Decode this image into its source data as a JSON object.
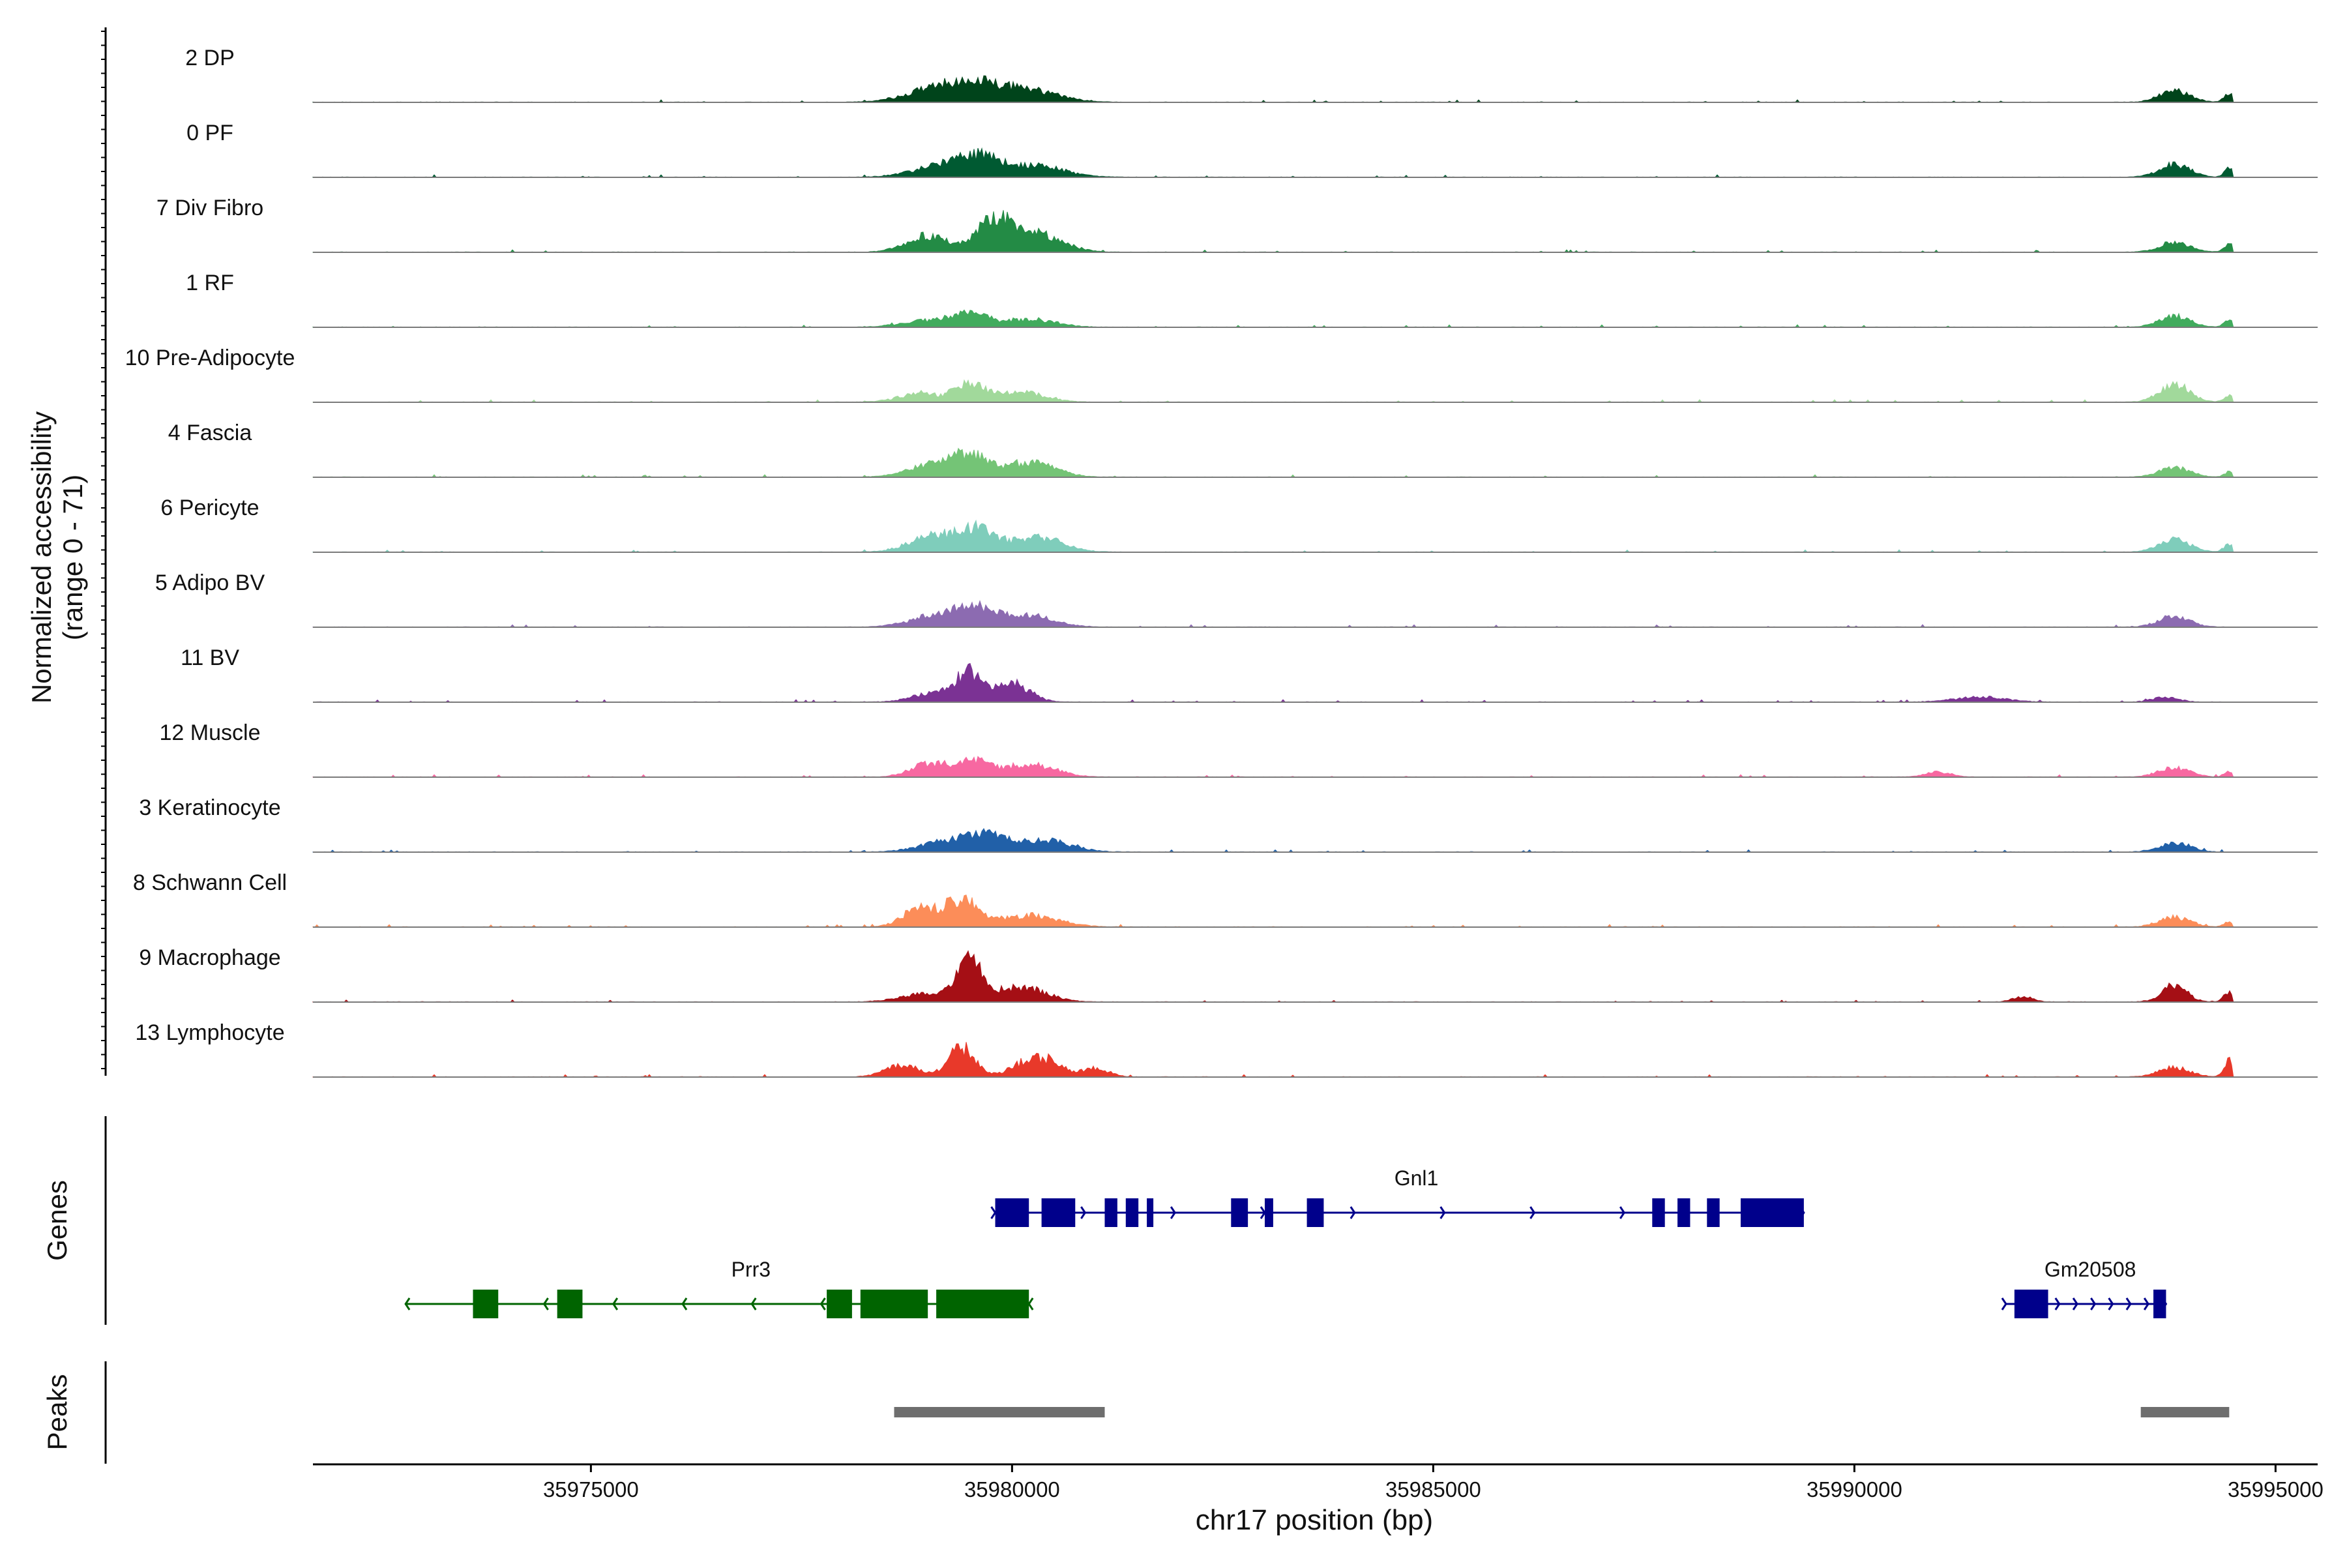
{
  "chart_data": {
    "type": "area",
    "title": "",
    "chromosome": "chr17",
    "xlabel": "chr17 position (bp)",
    "xlim": [
      35971700,
      35995500
    ],
    "track_max": 35994500,
    "ylabel_line1": "Normalized accessibility",
    "ylabel_line2": "(range 0 - 71)",
    "ylim": [
      0,
      71
    ],
    "x_ticks": [
      {
        "value": 35975000,
        "label": "35975000"
      },
      {
        "value": 35980000,
        "label": "35980000"
      },
      {
        "value": 35985000,
        "label": "35985000"
      },
      {
        "value": 35990000,
        "label": "35990000"
      },
      {
        "value": 35995000,
        "label": "35995000"
      }
    ],
    "tracks": [
      {
        "name": "2 DP",
        "color": "#00441b",
        "peaks": [
          [
            35979100,
            16,
            350
          ],
          [
            35979600,
            18,
            300
          ],
          [
            35980200,
            14,
            350
          ],
          [
            35993800,
            14,
            180
          ],
          [
            35994450,
            10,
            60
          ]
        ]
      },
      {
        "name": "0 PF",
        "color": "#005a32",
        "peaks": [
          [
            35979200,
            14,
            350
          ],
          [
            35979600,
            18,
            250
          ],
          [
            35980250,
            14,
            350
          ],
          [
            35993800,
            16,
            180
          ],
          [
            35994450,
            10,
            60
          ]
        ]
      },
      {
        "name": "7 Div Fibro",
        "color": "#238b45",
        "peaks": [
          [
            35979000,
            20,
            250
          ],
          [
            35979800,
            40,
            200
          ],
          [
            35980300,
            22,
            300
          ],
          [
            35993800,
            12,
            180
          ],
          [
            35994450,
            10,
            60
          ]
        ]
      },
      {
        "name": "1 RF",
        "color": "#41ab5d",
        "peaks": [
          [
            35979000,
            8,
            300
          ],
          [
            35979500,
            16,
            200
          ],
          [
            35980200,
            10,
            300
          ],
          [
            35993800,
            14,
            180
          ],
          [
            35994450,
            8,
            60
          ]
        ]
      },
      {
        "name": "10 Pre-Adipocyte",
        "color": "#a1d99b",
        "peaks": [
          [
            35978900,
            10,
            250
          ],
          [
            35979500,
            22,
            180
          ],
          [
            35980100,
            12,
            280
          ],
          [
            35993800,
            20,
            180
          ],
          [
            35994450,
            8,
            60
          ]
        ]
      },
      {
        "name": "4 Fascia",
        "color": "#74c476",
        "peaks": [
          [
            35979100,
            16,
            300
          ],
          [
            35979500,
            22,
            200
          ],
          [
            35980200,
            18,
            300
          ],
          [
            35993800,
            12,
            180
          ],
          [
            35994450,
            6,
            60
          ]
        ]
      },
      {
        "name": "6 Pericyte",
        "color": "#7fcdbb",
        "peaks": [
          [
            35979100,
            20,
            300
          ],
          [
            35979600,
            26,
            200
          ],
          [
            35980300,
            18,
            300
          ],
          [
            35993800,
            16,
            180
          ],
          [
            35994450,
            10,
            60
          ]
        ]
      },
      {
        "name": "5 Adipo BV",
        "color": "#8c6bb1",
        "peaks": [
          [
            35979100,
            14,
            300
          ],
          [
            35979600,
            20,
            250
          ],
          [
            35980200,
            14,
            300
          ],
          [
            35993800,
            14,
            180
          ]
        ]
      },
      {
        "name": "11 BV",
        "color": "#7b3294",
        "peaks": [
          [
            35979100,
            12,
            250
          ],
          [
            35979500,
            34,
            150
          ],
          [
            35980000,
            24,
            200
          ],
          [
            35991500,
            6,
            300
          ],
          [
            35993700,
            6,
            150
          ]
        ]
      },
      {
        "name": "12 Muscle",
        "color": "#f768a1",
        "peaks": [
          [
            35979000,
            16,
            200
          ],
          [
            35979500,
            20,
            200
          ],
          [
            35980200,
            16,
            300
          ],
          [
            35991000,
            6,
            150
          ],
          [
            35993800,
            12,
            180
          ],
          [
            35994450,
            6,
            60
          ]
        ]
      },
      {
        "name": "3 Keratinocyte",
        "color": "#2160a8",
        "peaks": [
          [
            35979200,
            12,
            300
          ],
          [
            35979700,
            18,
            250
          ],
          [
            35980400,
            14,
            300
          ],
          [
            35993800,
            12,
            180
          ]
        ]
      },
      {
        "name": "8 Schwann Cell",
        "color": "#fc8d59",
        "peaks": [
          [
            35978900,
            22,
            200
          ],
          [
            35979400,
            32,
            200
          ],
          [
            35980200,
            14,
            350
          ],
          [
            35993800,
            12,
            180
          ],
          [
            35994450,
            6,
            60
          ]
        ]
      },
      {
        "name": "9 Macrophage",
        "color": "#a50f15",
        "peaks": [
          [
            35979000,
            10,
            300
          ],
          [
            35979500,
            44,
            150
          ],
          [
            35980100,
            18,
            300
          ],
          [
            35992000,
            6,
            120
          ],
          [
            35993800,
            20,
            150
          ],
          [
            35994450,
            12,
            60
          ]
        ]
      },
      {
        "name": "13 Lymphocyte",
        "color": "#e8392a",
        "peaks": [
          [
            35978700,
            14,
            200
          ],
          [
            35979400,
            36,
            150
          ],
          [
            35980300,
            24,
            250
          ],
          [
            35981000,
            10,
            150
          ],
          [
            35993800,
            12,
            180
          ],
          [
            35994450,
            20,
            60
          ]
        ]
      }
    ],
    "genes": [
      {
        "name": "Gnl1",
        "strand": "+",
        "color": "#00008b",
        "start": 35979800,
        "end": 35989400,
        "label_pos": 35984800,
        "row": 0,
        "exons": [
          [
            35979800,
            35980200
          ],
          [
            35980350,
            35980750
          ],
          [
            35981100,
            35981250
          ],
          [
            35981350,
            35981500
          ],
          [
            35981600,
            35981650
          ],
          [
            35982600,
            35982800
          ],
          [
            35983000,
            35983100
          ],
          [
            35983500,
            35983700
          ],
          [
            35987600,
            35987750
          ],
          [
            35987900,
            35988050
          ],
          [
            35988250,
            35988400
          ],
          [
            35988650,
            35989400
          ]
        ]
      },
      {
        "name": "Prr3",
        "strand": "-",
        "color": "#006400",
        "start": 35972800,
        "end": 35980200,
        "label_pos": 35976900,
        "row": 1,
        "exons": [
          [
            35973600,
            35973900
          ],
          [
            35974600,
            35974900
          ],
          [
            35977800,
            35978100
          ],
          [
            35978200,
            35979000
          ],
          [
            35979100,
            35980200
          ]
        ]
      },
      {
        "name": "Gm20508",
        "strand": "+",
        "color": "#00008b",
        "start": 35991800,
        "end": 35993700,
        "label_pos": 35992800,
        "row": 1,
        "exons": [
          [
            35991900,
            35992300
          ],
          [
            35993550,
            35993700
          ]
        ]
      }
    ],
    "gene_panel_label": "Genes",
    "peaks_panel_label": "Peaks",
    "peak_regions": [
      [
        35978600,
        35981100
      ],
      [
        35993400,
        35994450
      ]
    ],
    "peak_color": "#6e6e6e"
  }
}
